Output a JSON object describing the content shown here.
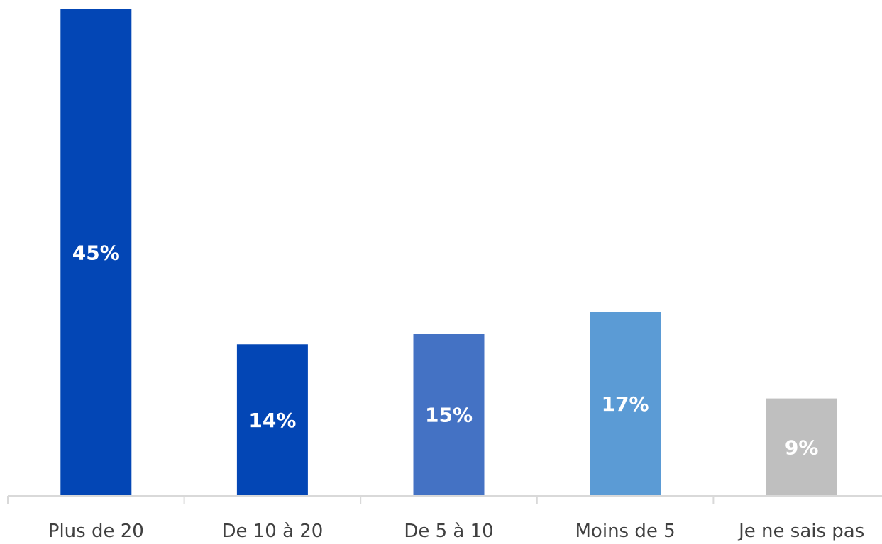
{
  "chart_data": {
    "type": "bar",
    "categories": [
      "Plus de 20",
      "De 10 à 20",
      "De 5 à 10",
      "Moins de 5",
      "Je ne sais pas"
    ],
    "values": [
      45,
      14,
      15,
      17,
      9
    ],
    "data_labels": [
      "45%",
      "14%",
      "15%",
      "17%",
      "9%"
    ],
    "colors": [
      "#0346b5",
      "#0346b5",
      "#4472c4",
      "#5b9bd5",
      "#bfbfbf"
    ],
    "ylim": [
      0,
      45
    ],
    "grid": false,
    "legend": "none"
  }
}
